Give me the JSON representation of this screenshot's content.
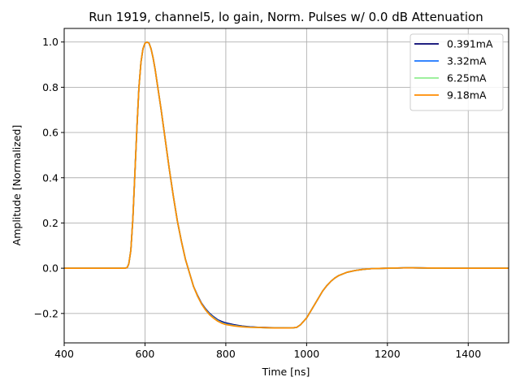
{
  "chart_data": {
    "type": "line",
    "title": "Run 1919, channel5, lo gain, Norm. Pulses w/ 0.0 dB Attenuation",
    "xlabel": "Time [ns]",
    "ylabel": "Amplitude [Normalized]",
    "xlim": [
      400,
      1500
    ],
    "ylim": [
      -0.33,
      1.06
    ],
    "xticks": [
      400,
      600,
      800,
      1000,
      1200,
      1400
    ],
    "yticks": [
      -0.2,
      0.0,
      0.2,
      0.4,
      0.6,
      0.8,
      1.0
    ],
    "ytick_labels": [
      "−0.2",
      "0.0",
      "0.2",
      "0.4",
      "0.6",
      "0.8",
      "1.0"
    ],
    "grid": true,
    "legend_position": "top-right",
    "x": [
      400,
      550,
      556,
      560,
      565,
      570,
      575,
      580,
      585,
      590,
      595,
      600,
      605,
      610,
      615,
      620,
      625,
      630,
      640,
      650,
      660,
      670,
      680,
      690,
      700,
      710,
      720,
      730,
      740,
      750,
      760,
      770,
      780,
      790,
      800,
      820,
      840,
      860,
      880,
      900,
      920,
      940,
      960,
      975,
      985,
      1000,
      1010,
      1020,
      1030,
      1040,
      1050,
      1060,
      1070,
      1080,
      1100,
      1120,
      1140,
      1160,
      1180,
      1200,
      1250,
      1300,
      1350,
      1400,
      1500
    ],
    "series": [
      {
        "name": "0.391mA",
        "color": "#00006e",
        "values": [
          0.0,
          0.0,
          0.003,
          0.02,
          0.08,
          0.22,
          0.42,
          0.62,
          0.8,
          0.91,
          0.97,
          0.995,
          1.0,
          0.995,
          0.97,
          0.93,
          0.88,
          0.82,
          0.7,
          0.57,
          0.44,
          0.32,
          0.21,
          0.12,
          0.04,
          -0.02,
          -0.08,
          -0.12,
          -0.155,
          -0.18,
          -0.2,
          -0.215,
          -0.228,
          -0.236,
          -0.242,
          -0.25,
          -0.256,
          -0.259,
          -0.261,
          -0.262,
          -0.263,
          -0.263,
          -0.264,
          -0.262,
          -0.25,
          -0.22,
          -0.19,
          -0.16,
          -0.13,
          -0.1,
          -0.077,
          -0.058,
          -0.043,
          -0.032,
          -0.018,
          -0.01,
          -0.005,
          -0.002,
          -0.001,
          0.0,
          0.002,
          0.001,
          0.0,
          0.0,
          0.0
        ]
      },
      {
        "name": "3.32mA",
        "color": "#1a75ff",
        "values": [
          0.0,
          0.0,
          0.003,
          0.02,
          0.08,
          0.22,
          0.42,
          0.62,
          0.8,
          0.91,
          0.97,
          0.995,
          1.0,
          0.995,
          0.97,
          0.93,
          0.88,
          0.82,
          0.7,
          0.57,
          0.44,
          0.32,
          0.21,
          0.12,
          0.04,
          -0.02,
          -0.08,
          -0.122,
          -0.157,
          -0.183,
          -0.203,
          -0.218,
          -0.231,
          -0.24,
          -0.246,
          -0.253,
          -0.258,
          -0.26,
          -0.262,
          -0.263,
          -0.264,
          -0.264,
          -0.264,
          -0.262,
          -0.25,
          -0.22,
          -0.19,
          -0.16,
          -0.13,
          -0.1,
          -0.077,
          -0.058,
          -0.043,
          -0.032,
          -0.018,
          -0.01,
          -0.005,
          -0.002,
          -0.001,
          0.0,
          0.002,
          0.001,
          0.0,
          0.0,
          0.0
        ]
      },
      {
        "name": "6.25mA",
        "color": "#90ee90",
        "values": [
          0.0,
          0.0,
          0.003,
          0.02,
          0.08,
          0.22,
          0.42,
          0.62,
          0.8,
          0.91,
          0.97,
          0.995,
          1.0,
          0.995,
          0.97,
          0.93,
          0.88,
          0.82,
          0.7,
          0.57,
          0.44,
          0.32,
          0.21,
          0.12,
          0.04,
          -0.02,
          -0.08,
          -0.123,
          -0.158,
          -0.184,
          -0.205,
          -0.22,
          -0.233,
          -0.242,
          -0.248,
          -0.254,
          -0.258,
          -0.261,
          -0.262,
          -0.263,
          -0.264,
          -0.264,
          -0.264,
          -0.262,
          -0.25,
          -0.22,
          -0.19,
          -0.16,
          -0.13,
          -0.1,
          -0.077,
          -0.058,
          -0.043,
          -0.032,
          -0.018,
          -0.01,
          -0.005,
          -0.002,
          -0.001,
          0.0,
          0.002,
          0.001,
          0.0,
          0.0,
          0.0
        ]
      },
      {
        "name": "9.18mA",
        "color": "#ff8c00",
        "values": [
          0.0,
          0.0,
          0.003,
          0.02,
          0.08,
          0.22,
          0.42,
          0.62,
          0.8,
          0.91,
          0.97,
          0.995,
          1.0,
          0.995,
          0.97,
          0.93,
          0.88,
          0.82,
          0.7,
          0.57,
          0.44,
          0.32,
          0.21,
          0.12,
          0.04,
          -0.02,
          -0.08,
          -0.123,
          -0.158,
          -0.185,
          -0.206,
          -0.221,
          -0.234,
          -0.243,
          -0.249,
          -0.255,
          -0.259,
          -0.261,
          -0.262,
          -0.263,
          -0.264,
          -0.264,
          -0.264,
          -0.262,
          -0.25,
          -0.22,
          -0.19,
          -0.16,
          -0.13,
          -0.1,
          -0.077,
          -0.058,
          -0.043,
          -0.032,
          -0.018,
          -0.01,
          -0.005,
          -0.002,
          -0.001,
          0.0,
          0.002,
          0.001,
          0.0,
          0.0,
          0.0
        ]
      }
    ]
  }
}
